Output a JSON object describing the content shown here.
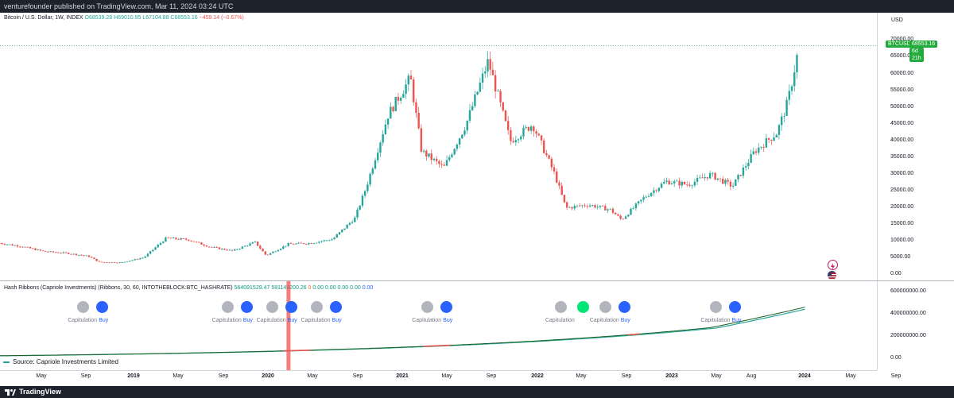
{
  "header": {
    "published": "venturefounder published on TradingView.com, Mar 11, 2024 03:24 UTC"
  },
  "main_pane": {
    "currency": "USD",
    "legend": {
      "symbol": "Bitcoin / U.S. Dollar, 1W, INDEX",
      "o": "O68539.28",
      "h": "H69010.95",
      "l": "L67104.88",
      "c": "C68553.16",
      "change": "−459.14 (−0.67%)"
    },
    "price_axis": [
      "70000.00",
      "65000.00",
      "60000.00",
      "55000.00",
      "50000.00",
      "45000.00",
      "40000.00",
      "35000.00",
      "30000.00",
      "25000.00",
      "20000.00",
      "15000.00",
      "10000.00",
      "5000.00",
      "0.00"
    ],
    "price_tag": {
      "symbol": "BTCUSD",
      "price": "68553.16",
      "countdown": "6d 21h"
    },
    "icons": [
      "lightning-icon",
      "us-flag-icon"
    ],
    "up_color": "#26a69a",
    "down_color": "#ef5350"
  },
  "hash_pane": {
    "legend": {
      "name": "Hash Ribbons (Capriole Investments) (Ribbons, 30, 60, INTOTHEBLOCK:BTC_HASHRATE)",
      "v1": "564091529.47",
      "v2": "581149200.26",
      "v3": "0",
      "v4": "0.00",
      "v5": "0.00",
      "v6": "0.00",
      "v7": "0.00",
      "v8": "0.00"
    },
    "axis": [
      "600000000.00",
      "400000000.00",
      "200000000.00",
      "0.00"
    ],
    "capitulation_label": "Capitulation",
    "buy_label": "Buy",
    "source": "Source: Capriole Investments Limited"
  },
  "time_axis": [
    {
      "t": "May",
      "bold": false
    },
    {
      "t": "Sep",
      "bold": false
    },
    {
      "t": "2019",
      "bold": true
    },
    {
      "t": "May",
      "bold": false
    },
    {
      "t": "Sep",
      "bold": false
    },
    {
      "t": "2020",
      "bold": true
    },
    {
      "t": "May",
      "bold": false
    },
    {
      "t": "Sep",
      "bold": false
    },
    {
      "t": "2021",
      "bold": true
    },
    {
      "t": "May",
      "bold": false
    },
    {
      "t": "Sep",
      "bold": false
    },
    {
      "t": "2022",
      "bold": true
    },
    {
      "t": "May",
      "bold": false
    },
    {
      "t": "Sep",
      "bold": false
    },
    {
      "t": "2023",
      "bold": true
    },
    {
      "t": "May",
      "bold": false
    },
    {
      "t": "Aug",
      "bold": false
    },
    {
      "t": "2024",
      "bold": true
    },
    {
      "t": "May",
      "bold": false
    },
    {
      "t": "Sep",
      "bold": false
    }
  ],
  "footer": {
    "brand": "TradingView"
  },
  "chart_data": {
    "type": "candlestick",
    "title": "Bitcoin / U.S. Dollar, 1W, INDEX",
    "ylim": [
      0,
      72000
    ],
    "x_range": [
      "2018-03",
      "2024-10"
    ],
    "series": [
      {
        "x": "2018-03",
        "price": 9500
      },
      {
        "x": "2018-05",
        "price": 8500
      },
      {
        "x": "2018-07",
        "price": 7000
      },
      {
        "x": "2018-09",
        "price": 6500
      },
      {
        "x": "2018-11",
        "price": 5600
      },
      {
        "x": "2018-12",
        "price": 3800
      },
      {
        "x": "2019-02",
        "price": 3700
      },
      {
        "x": "2019-04",
        "price": 5200
      },
      {
        "x": "2019-06",
        "price": 11000
      },
      {
        "x": "2019-08",
        "price": 10500
      },
      {
        "x": "2019-10",
        "price": 8300
      },
      {
        "x": "2019-12",
        "price": 7200
      },
      {
        "x": "2020-02",
        "price": 9800
      },
      {
        "x": "2020-03",
        "price": 5800
      },
      {
        "x": "2020-05",
        "price": 9200
      },
      {
        "x": "2020-07",
        "price": 9500
      },
      {
        "x": "2020-09",
        "price": 10700
      },
      {
        "x": "2020-11",
        "price": 17000
      },
      {
        "x": "2020-12",
        "price": 26000
      },
      {
        "x": "2021-02",
        "price": 48000
      },
      {
        "x": "2021-04",
        "price": 59000
      },
      {
        "x": "2021-05",
        "price": 37000
      },
      {
        "x": "2021-07",
        "price": 32000
      },
      {
        "x": "2021-09",
        "price": 45000
      },
      {
        "x": "2021-11",
        "price": 64000
      },
      {
        "x": "2022-01",
        "price": 40000
      },
      {
        "x": "2022-03",
        "price": 45000
      },
      {
        "x": "2022-05",
        "price": 30000
      },
      {
        "x": "2022-06",
        "price": 20000
      },
      {
        "x": "2022-08",
        "price": 21000
      },
      {
        "x": "2022-10",
        "price": 19500
      },
      {
        "x": "2022-11",
        "price": 16500
      },
      {
        "x": "2023-01",
        "price": 23000
      },
      {
        "x": "2023-03",
        "price": 28000
      },
      {
        "x": "2023-05",
        "price": 27000
      },
      {
        "x": "2023-07",
        "price": 30000
      },
      {
        "x": "2023-09",
        "price": 26500
      },
      {
        "x": "2023-11",
        "price": 37000
      },
      {
        "x": "2024-01",
        "price": 42500
      },
      {
        "x": "2024-02",
        "price": 52000
      },
      {
        "x": "2024-03",
        "price": 68553
      }
    ],
    "hash_ribbons": {
      "signals": [
        {
          "x": "2018-11",
          "type": "capitulation-buy"
        },
        {
          "x": "2019-12",
          "type": "capitulation-buy"
        },
        {
          "x": "2020-04",
          "type": "capitulation-buy"
        },
        {
          "x": "2020-08",
          "type": "capitulation-buy"
        },
        {
          "x": "2021-06",
          "type": "capitulation-buy"
        },
        {
          "x": "2022-06",
          "type": "capitulation"
        },
        {
          "x": "2022-10",
          "type": "capitulation-buy"
        },
        {
          "x": "2023-08",
          "type": "capitulation-buy"
        }
      ]
    }
  }
}
